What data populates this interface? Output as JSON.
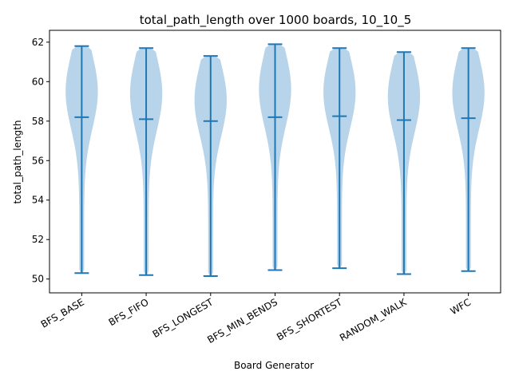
{
  "chart_data": {
    "type": "violin",
    "title": "total_path_length over 1000 boards, 10_10_5",
    "xlabel": "Board Generator",
    "ylabel": "total_path_length",
    "ylim": [
      49.3,
      62.6
    ],
    "yticks": [
      50,
      52,
      54,
      56,
      58,
      60,
      62
    ],
    "categories": [
      "BFS_BASE",
      "BFS_FIFO",
      "BFS_LONGEST",
      "BFS_MIN_BENDS",
      "BFS_SHORTEST",
      "RANDOM_WALK",
      "WFC"
    ],
    "series": [
      {
        "min": 50.3,
        "mean": 58.2,
        "max": 61.8
      },
      {
        "min": 50.2,
        "mean": 58.1,
        "max": 61.7
      },
      {
        "min": 50.15,
        "mean": 58.0,
        "max": 61.3
      },
      {
        "min": 50.45,
        "mean": 58.2,
        "max": 61.9
      },
      {
        "min": 50.55,
        "mean": 58.25,
        "max": 61.7
      },
      {
        "min": 50.25,
        "mean": 58.05,
        "max": 61.5
      },
      {
        "min": 50.4,
        "mean": 58.15,
        "max": 61.7
      }
    ],
    "grid": false,
    "colors": {
      "body": "#b8d4ea",
      "line": "#1f77b4"
    }
  }
}
